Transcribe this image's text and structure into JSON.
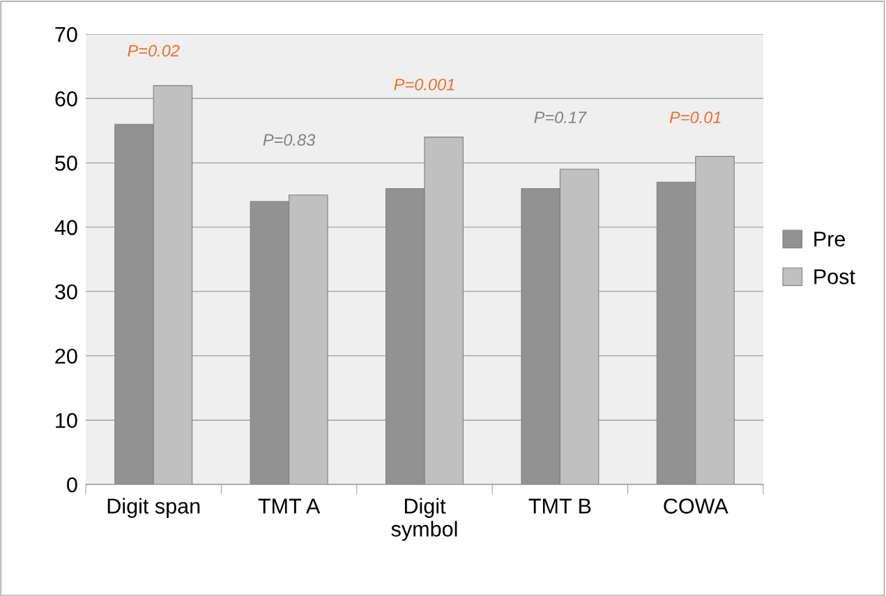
{
  "chart_data": {
    "type": "bar",
    "categories": [
      "Digit span",
      "TMT A",
      "Digit\nsymbol",
      "TMT B",
      "COWA"
    ],
    "series": [
      {
        "name": "Pre",
        "color": "#929292",
        "values": [
          56,
          44,
          46,
          46,
          47
        ]
      },
      {
        "name": "Post",
        "color": "#c0c0c0",
        "values": [
          62,
          45,
          54,
          49,
          51
        ]
      }
    ],
    "ylim": [
      0,
      70
    ],
    "yticks": [
      0,
      10,
      20,
      30,
      40,
      50,
      60,
      70
    ],
    "grid": "y",
    "legend": "right",
    "annotations": [
      "P=0.02",
      "P=0.83",
      "P=0.001",
      "P=0.17",
      "P=0.01"
    ]
  }
}
